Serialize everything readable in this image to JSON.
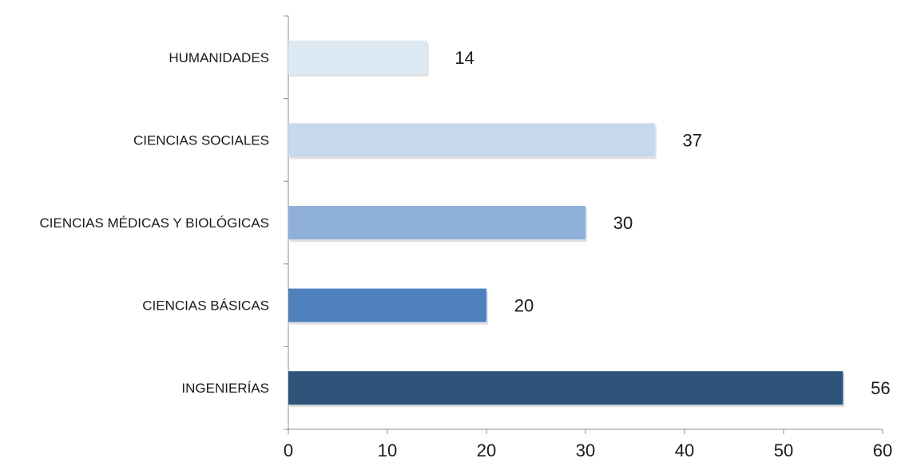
{
  "chart_data": {
    "type": "bar",
    "orientation": "horizontal",
    "categories": [
      "HUMANIDADES",
      "CIENCIAS SOCIALES",
      "CIENCIAS MÉDICAS Y BIOLÓGICAS",
      "CIENCIAS BÁSICAS",
      "INGENIERÍAS"
    ],
    "values": [
      14,
      37,
      30,
      20,
      56
    ],
    "colors": [
      "#dde9f3",
      "#c6d9ec",
      "#8eb0d8",
      "#4e81bd",
      "#2f5479"
    ],
    "xlim": [
      0,
      60
    ],
    "xticks": [
      0,
      10,
      20,
      30,
      40,
      50,
      60
    ],
    "title": "",
    "xlabel": "",
    "ylabel": "",
    "grid": false,
    "data_labels": true
  }
}
